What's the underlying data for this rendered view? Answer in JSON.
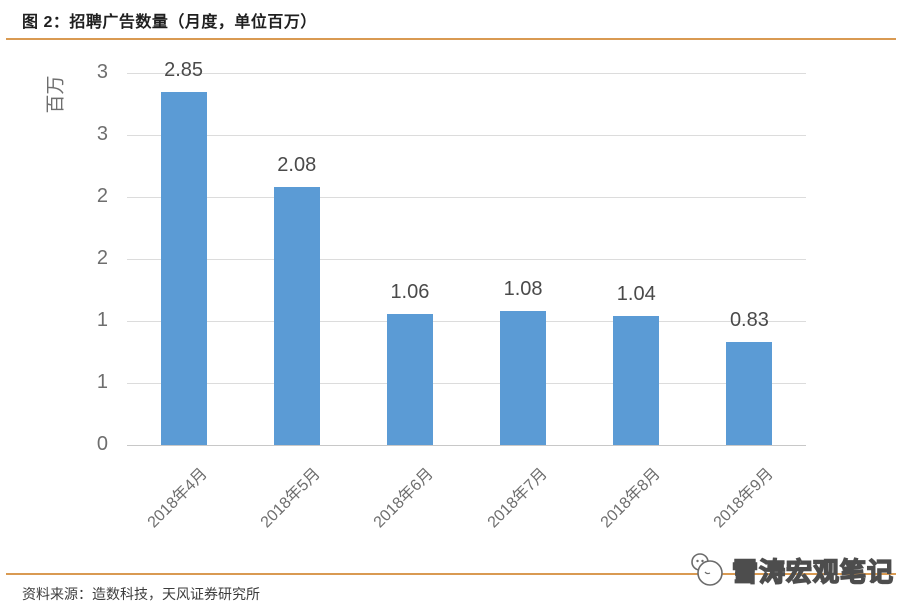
{
  "header": {
    "title": "图 2：招聘广告数量（月度，单位百万）"
  },
  "footer": {
    "source": "资料来源：造数科技，天风证券研究所",
    "watermark": "雪涛宏观笔记",
    "watermark_logo": "chat-bubbles-icon"
  },
  "colors": {
    "bar": "#5B9BD5",
    "accent_line": "#D99A52",
    "grid": "#DCDCDC",
    "tick_text": "#6e6e6e",
    "data_label_text": "#4a4a4a",
    "title_text": "#1f1f1f"
  },
  "chart_data": {
    "type": "bar",
    "title": "图 2：招聘广告数量（月度，单位百万）",
    "categories": [
      "2018年4月",
      "2018年5月",
      "2018年6月",
      "2018年7月",
      "2018年8月",
      "2018年9月"
    ],
    "values": [
      2.85,
      2.08,
      1.06,
      1.08,
      1.04,
      0.83
    ],
    "data_labels": [
      "2.85",
      "2.08",
      "1.06",
      "1.08",
      "1.04",
      "0.83"
    ],
    "ylabel": "百万",
    "xlabel": "",
    "ylim": [
      0,
      3
    ],
    "ytick_values": [
      0,
      0.5,
      1,
      1.5,
      2,
      2.5,
      3
    ],
    "ytick_labels": [
      "0",
      "1",
      "1",
      "2",
      "2",
      "3",
      "3"
    ],
    "grid": true,
    "legend": false,
    "bar_color": "#5B9BD5"
  }
}
